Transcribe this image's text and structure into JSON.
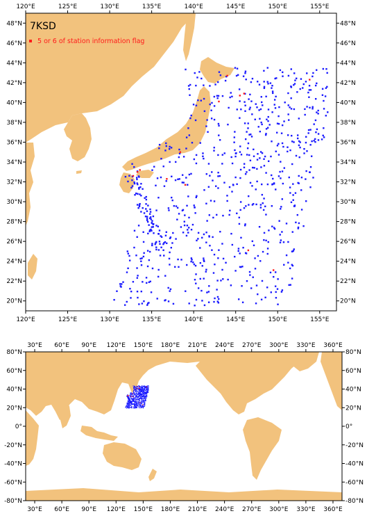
{
  "title": "7KSD",
  "legend_text": "5 or 6 of station information flag",
  "colors": {
    "land": "#f2c27d",
    "sea": "#ffffff",
    "station": "#1a1aff",
    "flagged": "#ff1a1a"
  },
  "top_map": {
    "lon_range": [
      120,
      157
    ],
    "lat_range": [
      19,
      49
    ],
    "lon_ticks": [
      "120°E",
      "125°E",
      "130°E",
      "135°E",
      "140°E",
      "145°E",
      "150°E",
      "155°E"
    ],
    "lon_tick_values": [
      120,
      125,
      130,
      135,
      140,
      145,
      150,
      155
    ],
    "lat_ticks": [
      "20°N",
      "22°N",
      "24°N",
      "26°N",
      "28°N",
      "30°N",
      "32°N",
      "34°N",
      "36°N",
      "38°N",
      "40°N",
      "42°N",
      "44°N",
      "46°N",
      "48°N"
    ],
    "lat_tick_values": [
      20,
      22,
      24,
      26,
      28,
      30,
      32,
      34,
      36,
      38,
      40,
      42,
      44,
      46,
      48
    ]
  },
  "world_map": {
    "lon_range": [
      20,
      370
    ],
    "lat_range": [
      -80,
      80
    ],
    "lon_ticks": [
      "30°E",
      "60°E",
      "90°E",
      "120°E",
      "150°E",
      "180°E",
      "210°E",
      "240°E",
      "270°E",
      "300°E",
      "330°E",
      "360°E"
    ],
    "lon_tick_values": [
      30,
      60,
      90,
      120,
      150,
      180,
      210,
      240,
      270,
      300,
      330,
      360
    ],
    "lat_ticks": [
      "80°N",
      "60°N",
      "40°N",
      "20°N",
      "0°",
      "-20°N",
      "-40°N",
      "-60°N",
      "-80°N"
    ],
    "lat_tick_values": [
      80,
      60,
      40,
      20,
      0,
      -20,
      -40,
      -60,
      -80
    ]
  }
}
